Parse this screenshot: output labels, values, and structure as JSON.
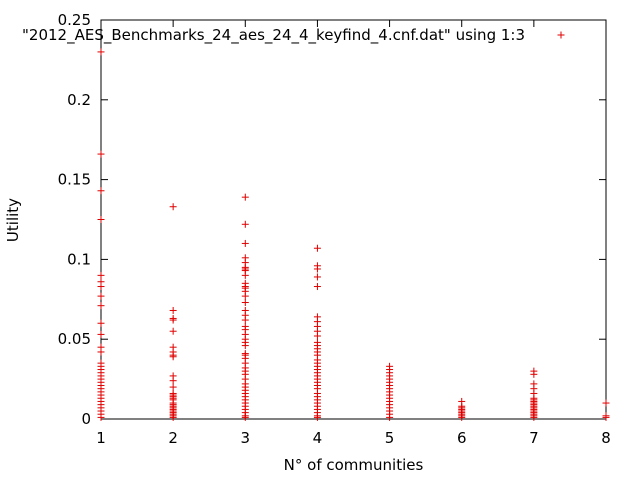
{
  "chart_data": {
    "type": "scatter",
    "title": "",
    "xlabel": "N° of communities",
    "ylabel": "Utility",
    "xlim": [
      1,
      8
    ],
    "ylim": [
      0,
      0.25
    ],
    "xticks": [
      1,
      2,
      3,
      4,
      5,
      6,
      7,
      8
    ],
    "yticks": [
      {
        "value": 0,
        "label": "0"
      },
      {
        "value": 0.05,
        "label": "0.05"
      },
      {
        "value": 0.1,
        "label": "0.1"
      },
      {
        "value": 0.15,
        "label": "0.15"
      },
      {
        "value": 0.2,
        "label": "0.2"
      },
      {
        "value": 0.25,
        "label": "0.25"
      }
    ],
    "grid": false,
    "legend": "top-right",
    "colors": {
      "series": "#e00000",
      "axis": "#000000"
    },
    "series": [
      {
        "name": "\"2012_AES_Benchmarks_24_aes_24_4_keyfind_4.cnf.dat\" using 1:3",
        "marker": "plus",
        "points": [
          [
            1,
            0.23
          ],
          [
            1,
            0.166
          ],
          [
            1,
            0.143
          ],
          [
            1,
            0.125
          ],
          [
            1,
            0.09
          ],
          [
            1,
            0.086
          ],
          [
            1,
            0.083
          ],
          [
            1,
            0.077
          ],
          [
            1,
            0.071
          ],
          [
            1,
            0.06
          ],
          [
            1,
            0.053
          ],
          [
            1,
            0.045
          ],
          [
            1,
            0.042
          ],
          [
            1,
            0.035
          ],
          [
            1,
            0.033
          ],
          [
            1,
            0.031
          ],
          [
            1,
            0.029
          ],
          [
            1,
            0.027
          ],
          [
            1,
            0.025
          ],
          [
            1,
            0.023
          ],
          [
            1,
            0.021
          ],
          [
            1,
            0.019
          ],
          [
            1,
            0.017
          ],
          [
            1,
            0.015
          ],
          [
            1,
            0.013
          ],
          [
            1,
            0.011
          ],
          [
            1,
            0.009
          ],
          [
            1,
            0.007
          ],
          [
            1,
            0.005
          ],
          [
            1,
            0.003
          ],
          [
            1,
            0.001
          ],
          [
            2,
            0.133
          ],
          [
            2,
            0.068
          ],
          [
            2,
            0.063
          ],
          [
            2,
            0.062
          ],
          [
            2,
            0.055
          ],
          [
            2,
            0.045
          ],
          [
            2,
            0.042
          ],
          [
            2,
            0.04
          ],
          [
            2,
            0.039
          ],
          [
            2,
            0.027
          ],
          [
            2,
            0.024
          ],
          [
            2,
            0.02
          ],
          [
            2,
            0.016
          ],
          [
            2,
            0.015
          ],
          [
            2,
            0.014
          ],
          [
            2,
            0.013
          ],
          [
            2,
            0.012
          ],
          [
            2,
            0.01
          ],
          [
            2,
            0.009
          ],
          [
            2,
            0.008
          ],
          [
            2,
            0.007
          ],
          [
            2,
            0.006
          ],
          [
            2,
            0.005
          ],
          [
            2,
            0.004
          ],
          [
            2,
            0.003
          ],
          [
            2,
            0.002
          ],
          [
            2,
            0.001
          ],
          [
            3,
            0.139
          ],
          [
            3,
            0.122
          ],
          [
            3,
            0.11
          ],
          [
            3,
            0.101
          ],
          [
            3,
            0.098
          ],
          [
            3,
            0.095
          ],
          [
            3,
            0.094
          ],
          [
            3,
            0.093
          ],
          [
            3,
            0.09
          ],
          [
            3,
            0.085
          ],
          [
            3,
            0.083
          ],
          [
            3,
            0.082
          ],
          [
            3,
            0.08
          ],
          [
            3,
            0.077
          ],
          [
            3,
            0.073
          ],
          [
            3,
            0.068
          ],
          [
            3,
            0.065
          ],
          [
            3,
            0.062
          ],
          [
            3,
            0.058
          ],
          [
            3,
            0.056
          ],
          [
            3,
            0.053
          ],
          [
            3,
            0.05
          ],
          [
            3,
            0.048
          ],
          [
            3,
            0.046
          ],
          [
            3,
            0.041
          ],
          [
            3,
            0.04
          ],
          [
            3,
            0.038
          ],
          [
            3,
            0.035
          ],
          [
            3,
            0.032
          ],
          [
            3,
            0.03
          ],
          [
            3,
            0.028
          ],
          [
            3,
            0.025
          ],
          [
            3,
            0.022
          ],
          [
            3,
            0.02
          ],
          [
            3,
            0.018
          ],
          [
            3,
            0.016
          ],
          [
            3,
            0.014
          ],
          [
            3,
            0.012
          ],
          [
            3,
            0.01
          ],
          [
            3,
            0.008
          ],
          [
            3,
            0.006
          ],
          [
            3,
            0.004
          ],
          [
            3,
            0.002
          ],
          [
            3,
            0.001
          ],
          [
            4,
            0.107
          ],
          [
            4,
            0.096
          ],
          [
            4,
            0.094
          ],
          [
            4,
            0.089
          ],
          [
            4,
            0.083
          ],
          [
            4,
            0.064
          ],
          [
            4,
            0.061
          ],
          [
            4,
            0.058
          ],
          [
            4,
            0.055
          ],
          [
            4,
            0.052
          ],
          [
            4,
            0.048
          ],
          [
            4,
            0.046
          ],
          [
            4,
            0.044
          ],
          [
            4,
            0.042
          ],
          [
            4,
            0.04
          ],
          [
            4,
            0.037
          ],
          [
            4,
            0.035
          ],
          [
            4,
            0.033
          ],
          [
            4,
            0.031
          ],
          [
            4,
            0.029
          ],
          [
            4,
            0.027
          ],
          [
            4,
            0.025
          ],
          [
            4,
            0.023
          ],
          [
            4,
            0.021
          ],
          [
            4,
            0.019
          ],
          [
            4,
            0.016
          ],
          [
            4,
            0.014
          ],
          [
            4,
            0.012
          ],
          [
            4,
            0.01
          ],
          [
            4,
            0.008
          ],
          [
            4,
            0.006
          ],
          [
            4,
            0.004
          ],
          [
            4,
            0.002
          ],
          [
            4,
            0.001
          ],
          [
            5,
            0.033
          ],
          [
            5,
            0.031
          ],
          [
            5,
            0.029
          ],
          [
            5,
            0.027
          ],
          [
            5,
            0.025
          ],
          [
            5,
            0.023
          ],
          [
            5,
            0.021
          ],
          [
            5,
            0.019
          ],
          [
            5,
            0.017
          ],
          [
            5,
            0.015
          ],
          [
            5,
            0.013
          ],
          [
            5,
            0.011
          ],
          [
            5,
            0.009
          ],
          [
            5,
            0.007
          ],
          [
            5,
            0.005
          ],
          [
            5,
            0.003
          ],
          [
            5,
            0.001
          ],
          [
            6,
            0.011
          ],
          [
            6,
            0.008
          ],
          [
            6,
            0.007
          ],
          [
            6,
            0.006
          ],
          [
            6,
            0.005
          ],
          [
            6,
            0.004
          ],
          [
            6,
            0.003
          ],
          [
            6,
            0.002
          ],
          [
            6,
            0.001
          ],
          [
            7,
            0.03
          ],
          [
            7,
            0.028
          ],
          [
            7,
            0.022
          ],
          [
            7,
            0.019
          ],
          [
            7,
            0.016
          ],
          [
            7,
            0.013
          ],
          [
            7,
            0.012
          ],
          [
            7,
            0.011
          ],
          [
            7,
            0.01
          ],
          [
            7,
            0.009
          ],
          [
            7,
            0.008
          ],
          [
            7,
            0.007
          ],
          [
            7,
            0.006
          ],
          [
            7,
            0.005
          ],
          [
            7,
            0.004
          ],
          [
            7,
            0.003
          ],
          [
            7,
            0.002
          ],
          [
            7,
            0.001
          ],
          [
            8,
            0.01
          ],
          [
            8,
            0.002
          ],
          [
            8,
            0.001
          ]
        ]
      }
    ]
  }
}
